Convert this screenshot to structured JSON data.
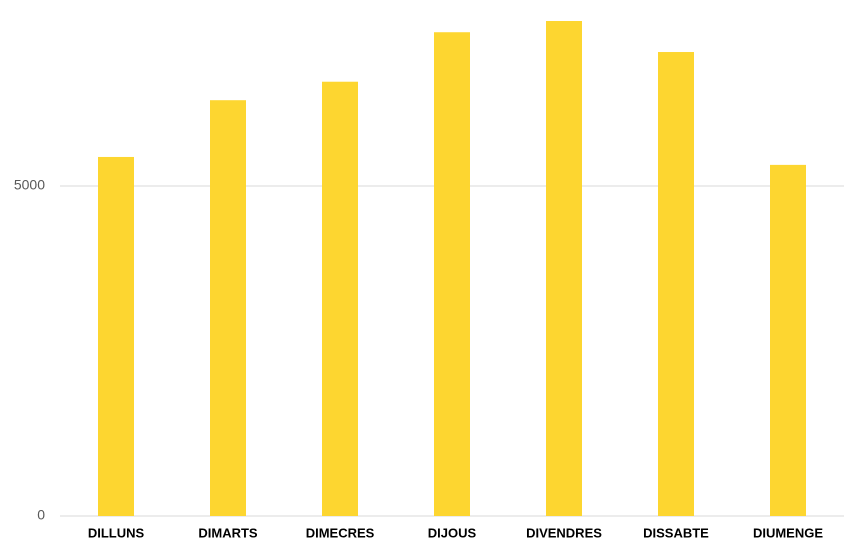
{
  "chart_data": {
    "type": "bar",
    "categories": [
      "DILLUNS",
      "DIMARTS",
      "DIMECRES",
      "DIJOUS",
      "DIVENDRES",
      "DISSABTE",
      "DIUMENGE"
    ],
    "values": [
      5440,
      6300,
      6580,
      7330,
      7500,
      7030,
      5320
    ],
    "color": "#fdd630",
    "ylim": [
      0,
      7800
    ],
    "yticks": [
      0,
      5000
    ],
    "grid": true
  }
}
